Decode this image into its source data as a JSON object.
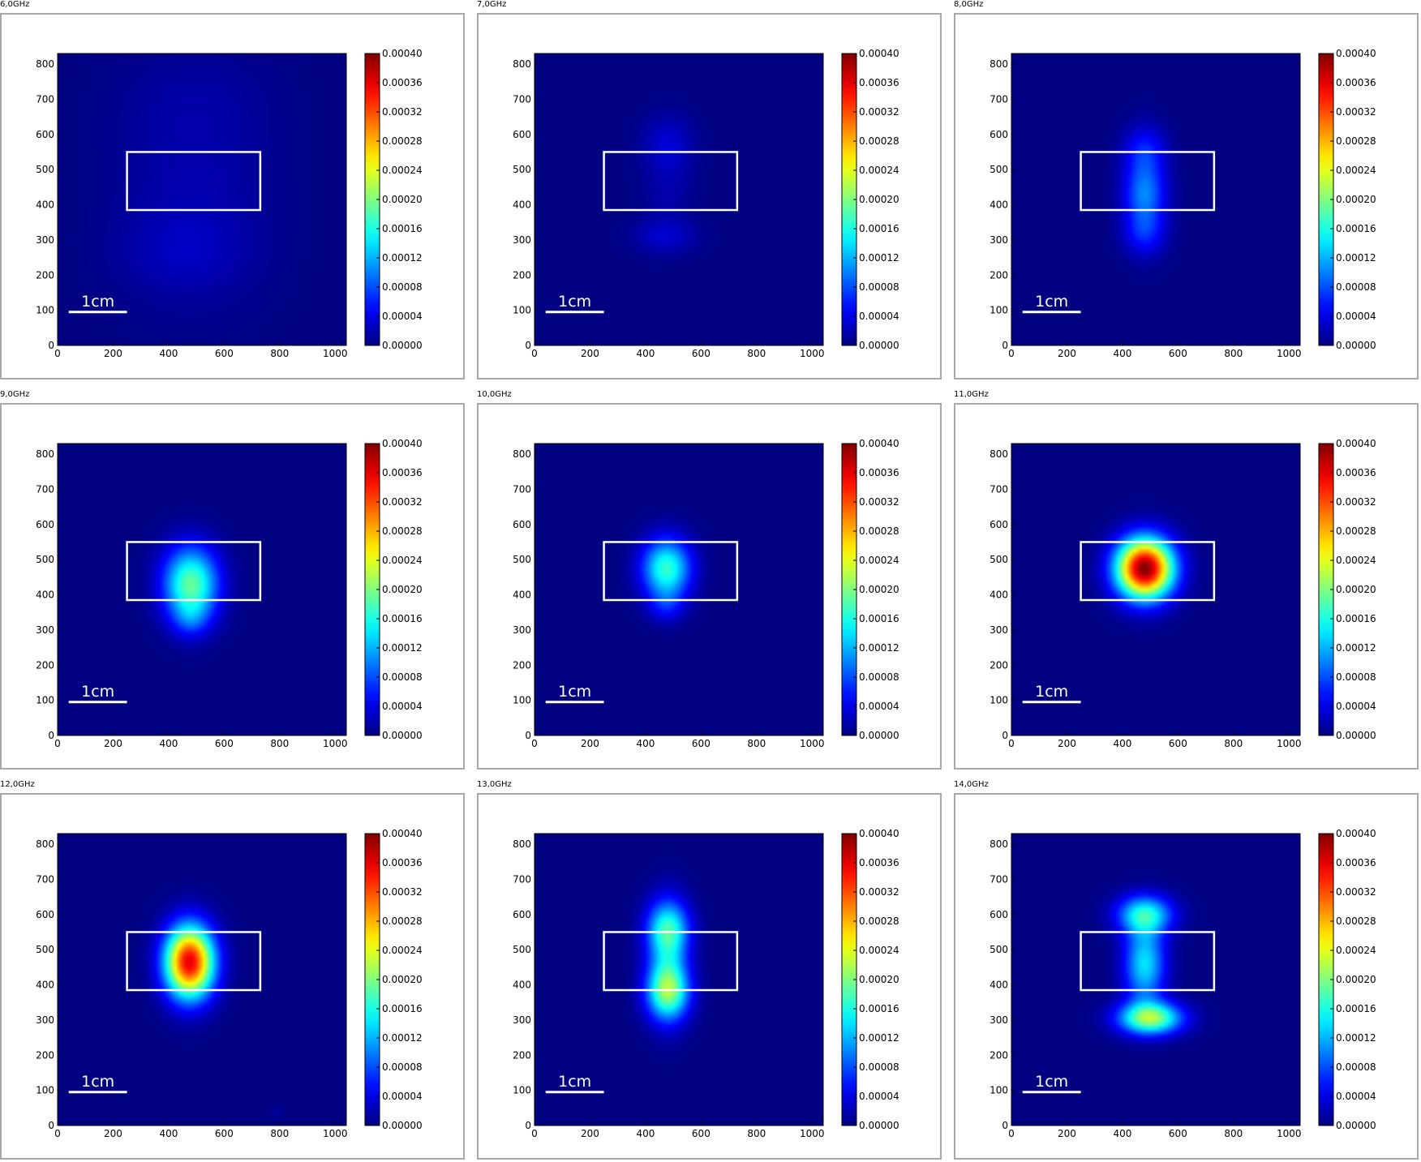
{
  "chart_data": [
    {
      "type": "heatmap",
      "title": "6,0GHz",
      "xlim": [
        0,
        1040
      ],
      "ylim": [
        0,
        830
      ],
      "xticks": [
        0,
        200,
        400,
        600,
        800,
        1000
      ],
      "yticks": [
        0,
        100,
        200,
        300,
        400,
        500,
        600,
        700,
        800
      ],
      "colorbar": {
        "min": 0.0,
        "max": 0.0004,
        "ticks": [
          "0.00000",
          "0.00004",
          "0.00008",
          "0.00012",
          "0.00016",
          "0.00020",
          "0.00024",
          "0.00028",
          "0.00032",
          "0.00036",
          "0.00040"
        ],
        "colormap": "jet"
      },
      "rectangle": {
        "x0": 250,
        "x1": 730,
        "y0": 385,
        "y1": 550
      },
      "scalebar": {
        "label": "1cm",
        "x0": 40,
        "x1": 250,
        "y": 95
      },
      "blobs": [
        {
          "x": 490,
          "y": 420,
          "sx": 200,
          "sy": 220,
          "v": 1.8e-05
        },
        {
          "x": 450,
          "y": 260,
          "sx": 160,
          "sy": 80,
          "v": 1.4e-05
        },
        {
          "x": 500,
          "y": 700,
          "sx": 200,
          "sy": 100,
          "v": 8e-06
        }
      ]
    },
    {
      "type": "heatmap",
      "title": "7,0GHz",
      "xlim": [
        0,
        1040
      ],
      "ylim": [
        0,
        830
      ],
      "xticks": [
        0,
        200,
        400,
        600,
        800,
        1000
      ],
      "yticks": [
        0,
        100,
        200,
        300,
        400,
        500,
        600,
        700,
        800
      ],
      "colorbar": {
        "min": 0.0,
        "max": 0.0004,
        "ticks": [
          "0.00000",
          "0.00004",
          "0.00008",
          "0.00012",
          "0.00016",
          "0.00020",
          "0.00024",
          "0.00028",
          "0.00032",
          "0.00036",
          "0.00040"
        ],
        "colormap": "jet"
      },
      "rectangle": {
        "x0": 250,
        "x1": 730,
        "y0": 385,
        "y1": 550
      },
      "scalebar": {
        "label": "1cm",
        "x0": 40,
        "x1": 250,
        "y": 95
      },
      "blobs": [
        {
          "x": 470,
          "y": 310,
          "sx": 80,
          "sy": 35,
          "v": 3e-05
        },
        {
          "x": 480,
          "y": 570,
          "sx": 65,
          "sy": 60,
          "v": 3.3e-05
        },
        {
          "x": 480,
          "y": 430,
          "sx": 60,
          "sy": 60,
          "v": 1.5e-05
        }
      ]
    },
    {
      "type": "heatmap",
      "title": "8,0GHz",
      "xlim": [
        0,
        1040
      ],
      "ylim": [
        0,
        830
      ],
      "xticks": [
        0,
        200,
        400,
        600,
        800,
        1000
      ],
      "yticks": [
        0,
        100,
        200,
        300,
        400,
        500,
        600,
        700,
        800
      ],
      "colorbar": {
        "min": 0.0,
        "max": 0.0004,
        "ticks": [
          "0.00000",
          "0.00004",
          "0.00008",
          "0.00012",
          "0.00016",
          "0.00020",
          "0.00024",
          "0.00028",
          "0.00032",
          "0.00036",
          "0.00040"
        ],
        "colormap": "jet"
      },
      "rectangle": {
        "x0": 250,
        "x1": 730,
        "y0": 385,
        "y1": 550
      },
      "scalebar": {
        "label": "1cm",
        "x0": 40,
        "x1": 250,
        "y": 95
      },
      "blobs": [
        {
          "x": 480,
          "y": 430,
          "sx": 55,
          "sy": 55,
          "v": 7e-05
        },
        {
          "x": 480,
          "y": 320,
          "sx": 55,
          "sy": 45,
          "v": 5e-05
        },
        {
          "x": 480,
          "y": 550,
          "sx": 55,
          "sy": 50,
          "v": 5e-05
        },
        {
          "x": 480,
          "y": 440,
          "sx": 50,
          "sy": 110,
          "v": 3e-05
        }
      ]
    },
    {
      "type": "heatmap",
      "title": "9,0GHz",
      "xlim": [
        0,
        1040
      ],
      "ylim": [
        0,
        830
      ],
      "xticks": [
        0,
        200,
        400,
        600,
        800,
        1000
      ],
      "yticks": [
        0,
        100,
        200,
        300,
        400,
        500,
        600,
        700,
        800
      ],
      "colorbar": {
        "min": 0.0,
        "max": 0.0004,
        "ticks": [
          "0.00000",
          "0.00004",
          "0.00008",
          "0.00012",
          "0.00016",
          "0.00020",
          "0.00024",
          "0.00028",
          "0.00032",
          "0.00036",
          "0.00040"
        ],
        "colormap": "jet"
      },
      "rectangle": {
        "x0": 250,
        "x1": 730,
        "y0": 385,
        "y1": 550
      },
      "scalebar": {
        "label": "1cm",
        "x0": 40,
        "x1": 250,
        "y": 95
      },
      "blobs": [
        {
          "x": 480,
          "y": 430,
          "sx": 70,
          "sy": 75,
          "v": 0.00019
        },
        {
          "x": 480,
          "y": 330,
          "sx": 45,
          "sy": 35,
          "v": 4e-05
        }
      ]
    },
    {
      "type": "heatmap",
      "title": "10,0GHz",
      "xlim": [
        0,
        1040
      ],
      "ylim": [
        0,
        830
      ],
      "xticks": [
        0,
        200,
        400,
        600,
        800,
        1000
      ],
      "yticks": [
        0,
        100,
        200,
        300,
        400,
        500,
        600,
        700,
        800
      ],
      "colorbar": {
        "min": 0.0,
        "max": 0.0004,
        "ticks": [
          "0.00000",
          "0.00004",
          "0.00008",
          "0.00012",
          "0.00016",
          "0.00020",
          "0.00024",
          "0.00028",
          "0.00032",
          "0.00036",
          "0.00040"
        ],
        "colormap": "jet"
      },
      "rectangle": {
        "x0": 250,
        "x1": 730,
        "y0": 385,
        "y1": 550
      },
      "scalebar": {
        "label": "1cm",
        "x0": 40,
        "x1": 250,
        "y": 95
      },
      "blobs": [
        {
          "x": 475,
          "y": 475,
          "sx": 62,
          "sy": 60,
          "v": 0.00017
        },
        {
          "x": 475,
          "y": 370,
          "sx": 45,
          "sy": 35,
          "v": 4e-05
        }
      ]
    },
    {
      "type": "heatmap",
      "title": "11,0GHz",
      "xlim": [
        0,
        1040
      ],
      "ylim": [
        0,
        830
      ],
      "xticks": [
        0,
        200,
        400,
        600,
        800,
        1000
      ],
      "yticks": [
        0,
        100,
        200,
        300,
        400,
        500,
        600,
        700,
        800
      ],
      "colorbar": {
        "min": 0.0,
        "max": 0.0004,
        "ticks": [
          "0.00000",
          "0.00004",
          "0.00008",
          "0.00012",
          "0.00016",
          "0.00020",
          "0.00024",
          "0.00028",
          "0.00032",
          "0.00036",
          "0.00040"
        ],
        "colormap": "jet"
      },
      "rectangle": {
        "x0": 250,
        "x1": 730,
        "y0": 385,
        "y1": 550
      },
      "scalebar": {
        "label": "1cm",
        "x0": 40,
        "x1": 250,
        "y": 95
      },
      "blobs": [
        {
          "x": 480,
          "y": 475,
          "sx": 72,
          "sy": 60,
          "v": 0.0004
        }
      ]
    },
    {
      "type": "heatmap",
      "title": "12,0GHz",
      "xlim": [
        0,
        1040
      ],
      "ylim": [
        0,
        830
      ],
      "xticks": [
        0,
        200,
        400,
        600,
        800,
        1000
      ],
      "yticks": [
        0,
        100,
        200,
        300,
        400,
        500,
        600,
        700,
        800
      ],
      "colorbar": {
        "min": 0.0,
        "max": 0.0004,
        "ticks": [
          "0.00000",
          "0.00004",
          "0.00008",
          "0.00012",
          "0.00016",
          "0.00020",
          "0.00024",
          "0.00028",
          "0.00032",
          "0.00036",
          "0.00040"
        ],
        "colormap": "jet"
      },
      "rectangle": {
        "x0": 250,
        "x1": 730,
        "y0": 385,
        "y1": 550
      },
      "scalebar": {
        "label": "1cm",
        "x0": 40,
        "x1": 250,
        "y": 95
      },
      "blobs": [
        {
          "x": 475,
          "y": 465,
          "sx": 62,
          "sy": 72,
          "v": 0.00036
        },
        {
          "x": 790,
          "y": 40,
          "sx": 20,
          "sy": 15,
          "v": 1e-05
        }
      ]
    },
    {
      "type": "heatmap",
      "title": "13,0GHz",
      "xlim": [
        0,
        1040
      ],
      "ylim": [
        0,
        830
      ],
      "xticks": [
        0,
        200,
        400,
        600,
        800,
        1000
      ],
      "yticks": [
        0,
        100,
        200,
        300,
        400,
        500,
        600,
        700,
        800
      ],
      "colorbar": {
        "min": 0.0,
        "max": 0.0004,
        "ticks": [
          "0.00000",
          "0.00004",
          "0.00008",
          "0.00012",
          "0.00016",
          "0.00020",
          "0.00024",
          "0.00028",
          "0.00032",
          "0.00036",
          "0.00040"
        ],
        "colormap": "jet"
      },
      "rectangle": {
        "x0": 250,
        "x1": 730,
        "y0": 385,
        "y1": 550
      },
      "scalebar": {
        "label": "1cm",
        "x0": 40,
        "x1": 250,
        "y": 95
      },
      "blobs": [
        {
          "x": 480,
          "y": 380,
          "sx": 55,
          "sy": 55,
          "v": 0.00016
        },
        {
          "x": 480,
          "y": 560,
          "sx": 55,
          "sy": 55,
          "v": 0.00012
        },
        {
          "x": 480,
          "y": 470,
          "sx": 50,
          "sy": 110,
          "v": 9e-05
        }
      ]
    },
    {
      "type": "heatmap",
      "title": "14,0GHz",
      "xlim": [
        0,
        1040
      ],
      "ylim": [
        0,
        830
      ],
      "xticks": [
        0,
        200,
        400,
        600,
        800,
        1000
      ],
      "yticks": [
        0,
        100,
        200,
        300,
        400,
        500,
        600,
        700,
        800
      ],
      "colorbar": {
        "min": 0.0,
        "max": 0.0004,
        "ticks": [
          "0.00000",
          "0.00004",
          "0.00008",
          "0.00012",
          "0.00016",
          "0.00020",
          "0.00024",
          "0.00028",
          "0.00032",
          "0.00036",
          "0.00040"
        ],
        "colormap": "jet"
      },
      "rectangle": {
        "x0": 250,
        "x1": 730,
        "y0": 385,
        "y1": 550
      },
      "scalebar": {
        "label": "1cm",
        "x0": 40,
        "x1": 250,
        "y": 95
      },
      "blobs": [
        {
          "x": 500,
          "y": 305,
          "sx": 80,
          "sy": 32,
          "v": 0.00021
        },
        {
          "x": 480,
          "y": 600,
          "sx": 70,
          "sy": 38,
          "v": 0.00015
        },
        {
          "x": 480,
          "y": 460,
          "sx": 52,
          "sy": 80,
          "v": 0.00014
        }
      ]
    }
  ]
}
